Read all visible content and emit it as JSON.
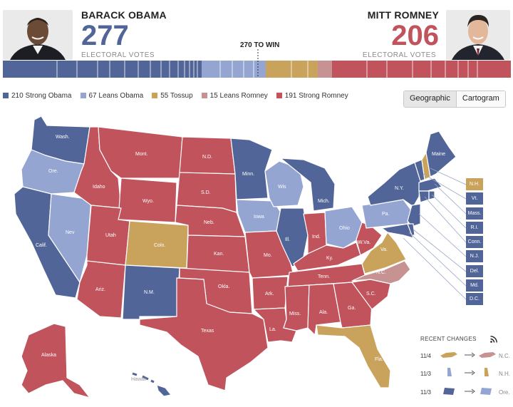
{
  "obama": {
    "name": "BARACK OBAMA",
    "votes": "277",
    "sub": "ELECTORAL VOTES",
    "color": "#526598"
  },
  "romney": {
    "name": "MITT ROMNEY",
    "votes": "206",
    "sub": "ELECTORAL VOTES",
    "color": "#c0535b"
  },
  "to_win": "270 TO WIN",
  "colors": {
    "strong_obama": "#526598",
    "leans_obama": "#95a5d1",
    "tossup": "#c9a35c",
    "leans_romney": "#c69292",
    "strong_romney": "#c0535b"
  },
  "legend": [
    {
      "label": "210 Strong Obama",
      "color": "#526598"
    },
    {
      "label": "67 Leans Obama",
      "color": "#95a5d1"
    },
    {
      "label": "55 Tossup",
      "color": "#c9a35c"
    },
    {
      "label": "15 Leans Romney",
      "color": "#c69292"
    },
    {
      "label": "191 Strong Romney",
      "color": "#c0535b"
    }
  ],
  "toggle": {
    "geographic": "Geographic",
    "cartogram": "Cartogram"
  },
  "small_states": [
    "N.H.",
    "Vt.",
    "Mass.",
    "R.I.",
    "Conn.",
    "N.J.",
    "Del.",
    "Md.",
    "D.C."
  ],
  "states": {
    "wash": "Wash.",
    "ore": "Ore.",
    "calif": "Calif.",
    "nev": "Nev",
    "idaho": "Idaho",
    "mont": "Mont.",
    "wyo": "Wyo.",
    "utah": "Utah",
    "ariz": "Ariz.",
    "colo": "Colo.",
    "nm": "N.M.",
    "nd": "N.D.",
    "sd": "S.D.",
    "neb": "Neb.",
    "kan": "Kan.",
    "okla": "Okla.",
    "texas": "Texas",
    "minn": "Minn.",
    "iowa": "Iowa",
    "mo": "Mo.",
    "ark": "Ark.",
    "la": "La.",
    "wis": "Wis",
    "ill": "Ill.",
    "mich": "Mich.",
    "ind": "Ind.",
    "ohio": "Ohio",
    "ky": "Ky.",
    "tenn": "Tenn.",
    "miss": "Miss.",
    "ala": "Ala.",
    "ga": "Ga.",
    "fla": "Fla.",
    "sc": "S.C.",
    "nc": "N.C.",
    "va": "Va.",
    "wva": "W.Va.",
    "pa": "Pa.",
    "ny": "N.Y.",
    "maine": "Maine",
    "alaska": "Alaska",
    "hawaii": "Hawaii"
  },
  "recent": {
    "title": "RECENT CHANGES",
    "rows": [
      {
        "date": "11/4",
        "state": "N.C."
      },
      {
        "date": "11/3",
        "state": "N.H."
      },
      {
        "date": "11/3",
        "state": "Ore."
      }
    ]
  }
}
